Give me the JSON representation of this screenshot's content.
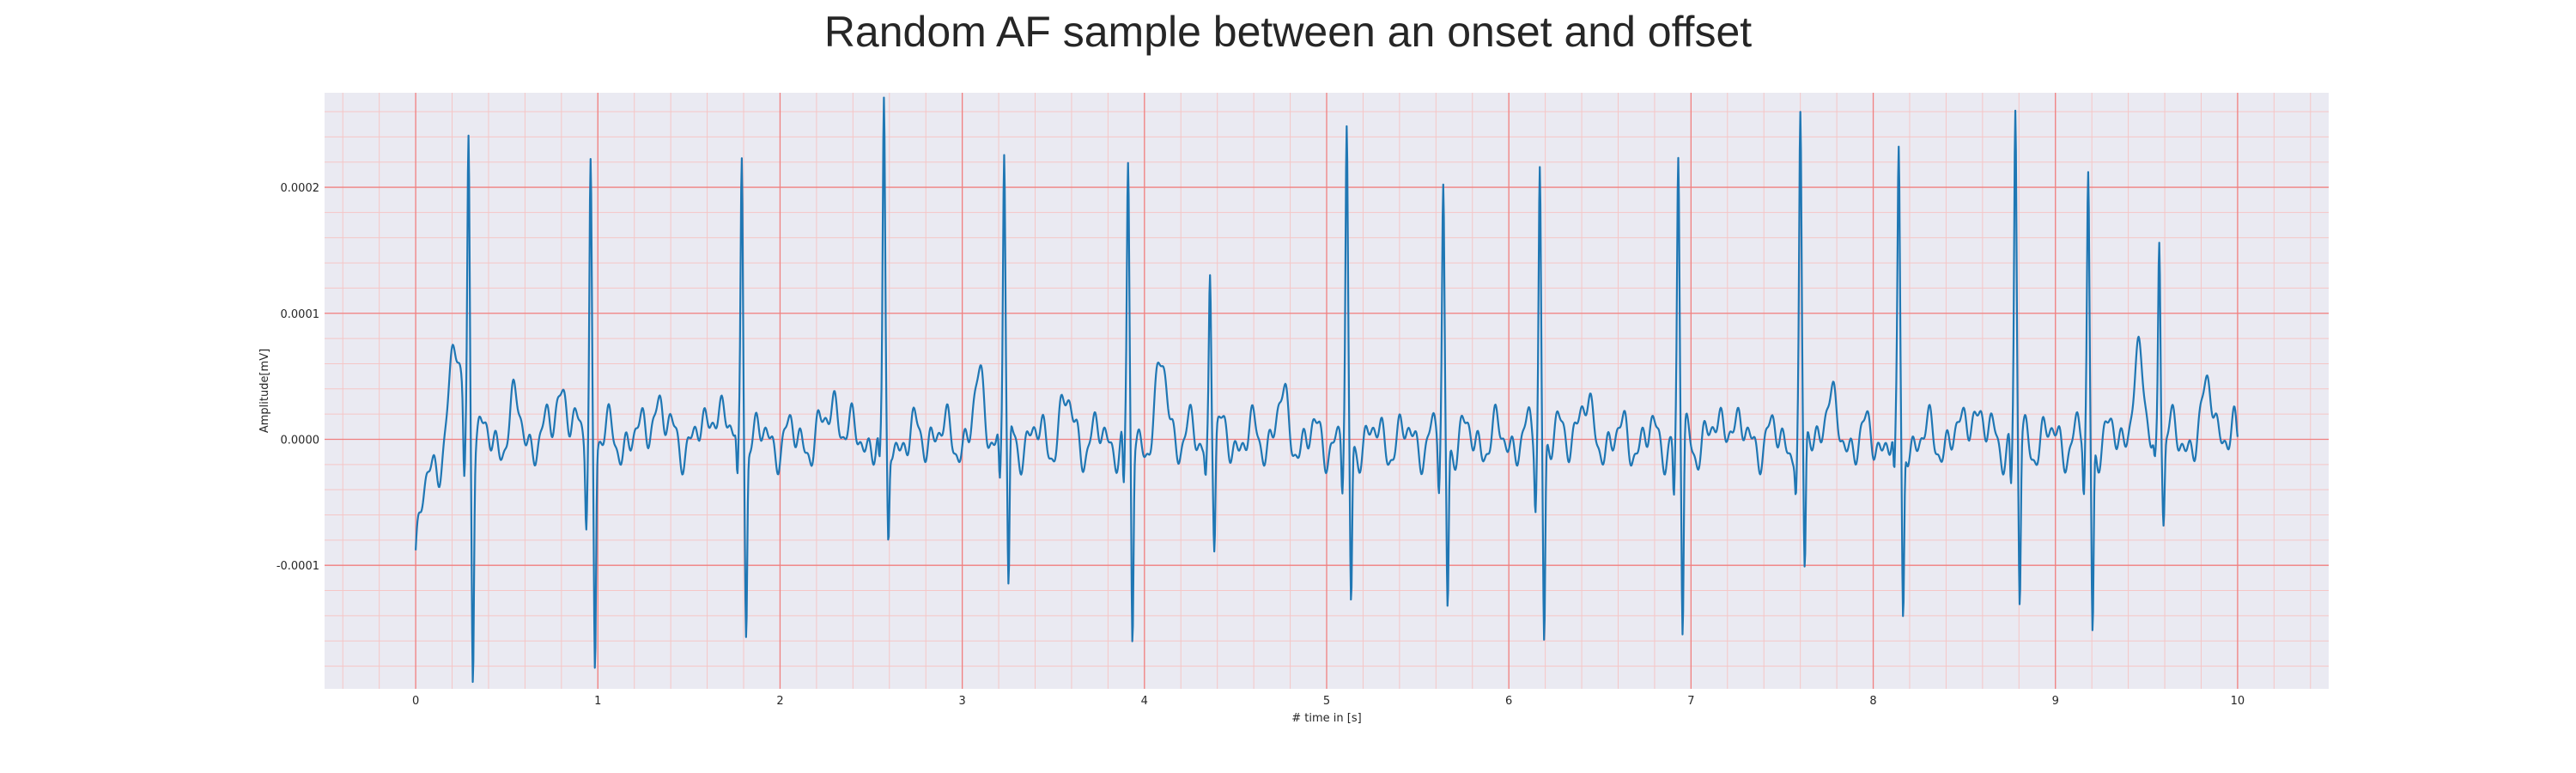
{
  "chart_data": {
    "type": "line",
    "title": "Random AF sample between an onset and offset",
    "xlabel": "# time in [s]",
    "ylabel": "Amplitude[mV]",
    "xlim": [
      -0.5,
      10.5
    ],
    "ylim": [
      -0.000198,
      0.000275
    ],
    "x_ticks": [
      0,
      1,
      2,
      3,
      4,
      5,
      6,
      7,
      8,
      9,
      10
    ],
    "x_tick_labels": [
      "0",
      "1",
      "2",
      "3",
      "4",
      "5",
      "6",
      "7",
      "8",
      "9",
      "10"
    ],
    "y_ticks": [
      -0.0001,
      0.0,
      0.0001,
      0.0002
    ],
    "y_tick_labels": [
      "-0.0001",
      "0.0000",
      "0.0001",
      "0.0002"
    ],
    "grid": true,
    "minor_grid": true,
    "colors": {
      "line": "#1f77b4",
      "plot_background": "#eaeaf2",
      "major_grid": "#f08080",
      "minor_grid": "#f5c6c6"
    },
    "r_peaks": [
      {
        "t": 0.29,
        "r": 0.000243,
        "s": -0.00017
      },
      {
        "t": 0.96,
        "r": 0.000225,
        "s": -0.000175
      },
      {
        "t": 1.79,
        "r": 0.000233,
        "s": -0.000138
      },
      {
        "t": 2.57,
        "r": 0.000251,
        "s": -8.8e-05
      },
      {
        "t": 3.23,
        "r": 0.00023,
        "s": -0.000135
      },
      {
        "t": 3.91,
        "r": 0.000203,
        "s": -0.000162
      },
      {
        "t": 4.36,
        "r": 0.00014,
        "s": -8e-05
      },
      {
        "t": 5.11,
        "r": 0.00023,
        "s": -0.000135
      },
      {
        "t": 5.64,
        "r": 0.000193,
        "s": -0.000128
      },
      {
        "t": 6.17,
        "r": 0.00022,
        "s": -0.000153
      },
      {
        "t": 6.93,
        "r": 0.000215,
        "s": -0.000157
      },
      {
        "t": 7.6,
        "r": 0.000237,
        "s": -0.000112
      },
      {
        "t": 8.14,
        "r": 0.000217,
        "s": -0.000145
      },
      {
        "t": 8.78,
        "r": 0.000252,
        "s": -0.000133
      },
      {
        "t": 9.18,
        "r": 0.000206,
        "s": -0.00015
      },
      {
        "t": 9.57,
        "r": 0.000173,
        "s": -6e-05
      }
    ],
    "baseline": {
      "start_t": 0.0,
      "start_value": -0.0001,
      "end_t": 10.0,
      "end_value": -1e-05,
      "waves": [
        {
          "t": 0.22,
          "v": 7e-05
        },
        {
          "t": 0.55,
          "v": 2.2e-05
        },
        {
          "t": 0.8,
          "v": 4.5e-05
        },
        {
          "t": 1.32,
          "v": 3.2e-05
        },
        {
          "t": 1.65,
          "v": 3.3e-05
        },
        {
          "t": 2.3,
          "v": 3.3e-05
        },
        {
          "t": 2.84,
          "v": 8e-06
        },
        {
          "t": 3.1,
          "v": 4e-05
        },
        {
          "t": 3.57,
          "v": 2.5e-05
        },
        {
          "t": 4.1,
          "v": 5.3e-05
        },
        {
          "t": 4.75,
          "v": 2.5e-05
        },
        {
          "t": 6.4,
          "v": 2.8e-05
        },
        {
          "t": 7.2,
          "v": 2.2e-05
        },
        {
          "t": 7.75,
          "v": 3e-05
        },
        {
          "t": 8.55,
          "v": 3e-05
        },
        {
          "t": 9.45,
          "v": 5.7e-05
        },
        {
          "t": 9.85,
          "v": 4e-05
        }
      ]
    }
  }
}
